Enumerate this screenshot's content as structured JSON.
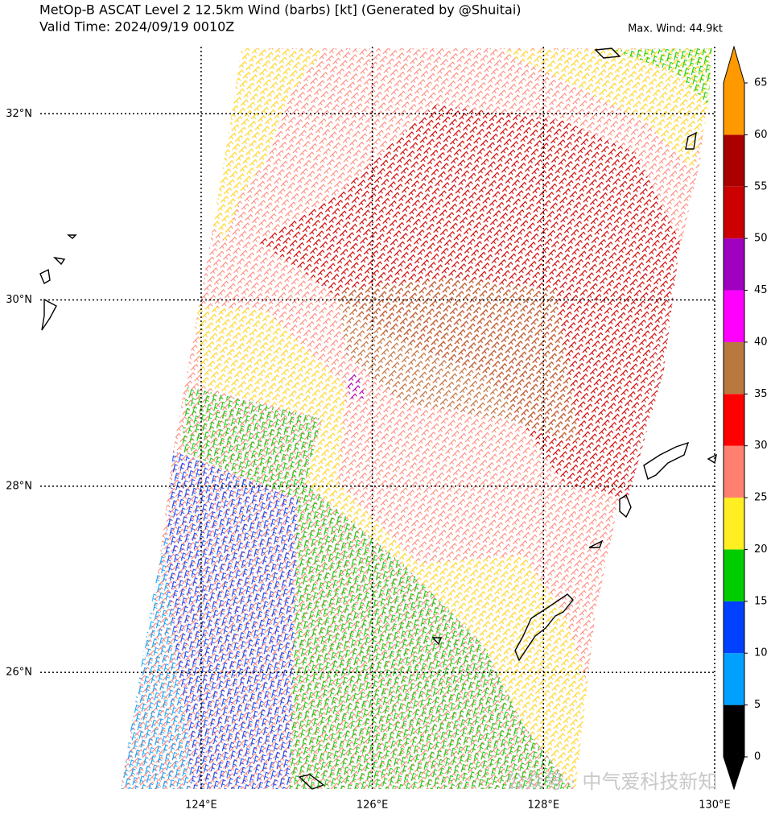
{
  "header": {
    "title": "MetOp-B ASCAT Level 2 12.5km Wind (barbs) [kt] (Generated by @Shuitai)",
    "valid_time": "Valid Time: 2024/09/19 0010Z",
    "max_wind": "Max. Wind: 44.9kt"
  },
  "map": {
    "xlim": [
      122.12,
      130
    ],
    "ylim": [
      24.73,
      32.72
    ],
    "xticks": [
      {
        "value": 124,
        "label": "124°E"
      },
      {
        "value": 126,
        "label": "126°E"
      },
      {
        "value": 128,
        "label": "128°E"
      },
      {
        "value": 130,
        "label": "130°E"
      }
    ],
    "yticks": [
      {
        "value": 26,
        "label": "26°N"
      },
      {
        "value": 28,
        "label": "28°N"
      },
      {
        "value": 30,
        "label": "30°N"
      },
      {
        "value": 32,
        "label": "32°N"
      }
    ]
  },
  "colorbar": {
    "ticks": [
      0,
      5,
      10,
      15,
      20,
      25,
      30,
      35,
      40,
      45,
      50,
      55,
      60,
      65
    ],
    "colors": [
      "#000000",
      "#00a0ff",
      "#0040ff",
      "#00cc00",
      "#ffee22",
      "#ff8070",
      "#ff0000",
      "#b87840",
      "#ff00ff",
      "#a000c0",
      "#cc0000",
      "#aa0000",
      "#ff9900"
    ],
    "under_color": "#000000",
    "over_color": "#ff9900"
  },
  "watermark": "公众号 · 中气爱科技新知"
}
